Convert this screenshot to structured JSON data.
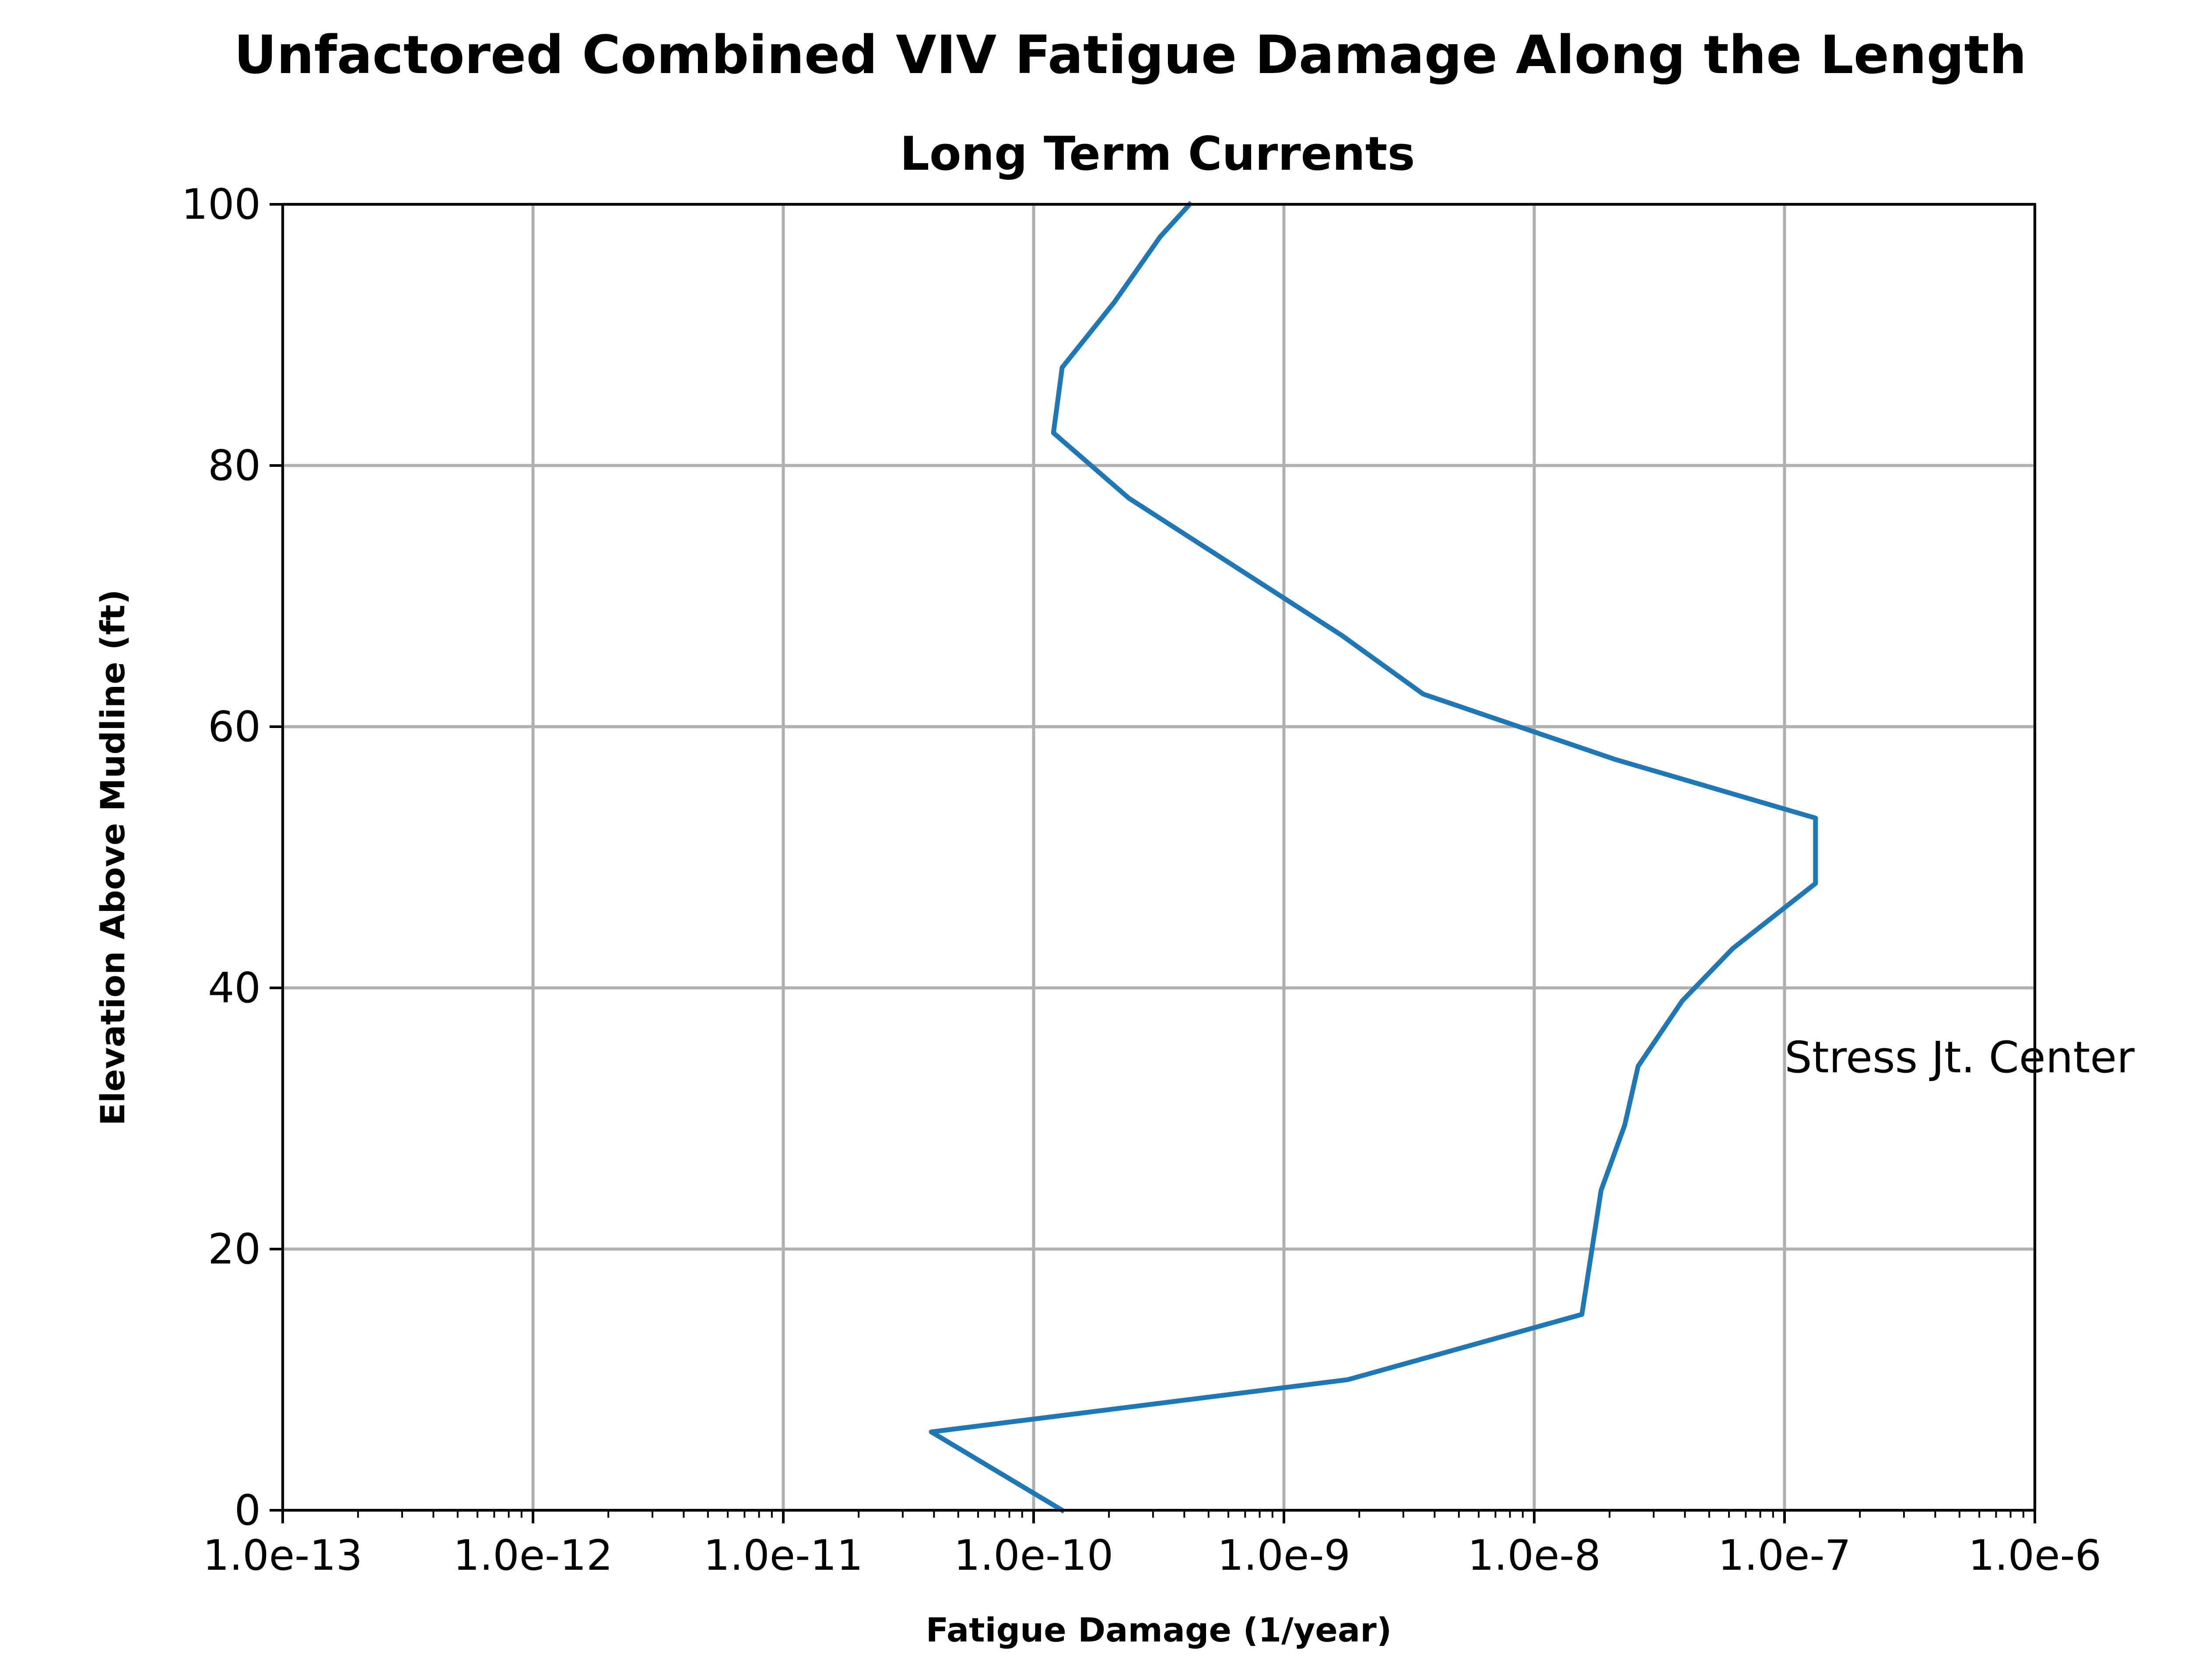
{
  "chart_data": {
    "type": "line",
    "title": "Unfactored Combined VIV Fatigue Damage Along the Length",
    "subtitle": "Long Term Currents",
    "xlabel": "Fatigue Damage (1/year)",
    "ylabel": "Elevation Above Mudline (ft)",
    "xscale": "log",
    "xlim": [
      1e-13,
      1e-06
    ],
    "ylim": [
      0,
      100
    ],
    "grid": true,
    "x_ticks": [
      1e-13,
      1e-12,
      1e-11,
      1e-10,
      1e-09,
      1e-08,
      1e-07,
      1e-06
    ],
    "x_tick_labels": [
      "1.0e-13",
      "1.0e-12",
      "1.0e-11",
      "1.0e-10",
      "1.0e-9",
      "1.0e-8",
      "1.0e-7",
      "1.0e-6"
    ],
    "y_ticks": [
      0,
      20,
      40,
      60,
      80,
      100
    ],
    "y_tick_labels": [
      "0",
      "20",
      "40",
      "60",
      "80",
      "100"
    ],
    "series": [
      {
        "color": "#1f77b4",
        "x": [
          1.3e-10,
          3.9e-11,
          1.8e-09,
          1.55e-08,
          1.85e-08,
          2.3e-08,
          2.6e-08,
          3.9e-08,
          6.2e-08,
          1.33e-07,
          1.33e-07,
          2.1e-08,
          3.6e-09,
          1.7e-09,
          2.4e-10,
          1.2e-10,
          1.3e-10,
          2.1e-10,
          3.2e-10,
          4.2e-10
        ],
        "y": [
          0,
          6,
          10,
          15,
          24.5,
          29.5,
          34,
          39,
          43,
          48,
          53,
          57.5,
          62.5,
          67,
          77.5,
          82.5,
          87.5,
          92.5,
          97.5,
          100
        ]
      }
    ],
    "annotations": [
      {
        "text": "Stress Jt. Center",
        "x": 1e-07,
        "y": 34
      }
    ]
  }
}
